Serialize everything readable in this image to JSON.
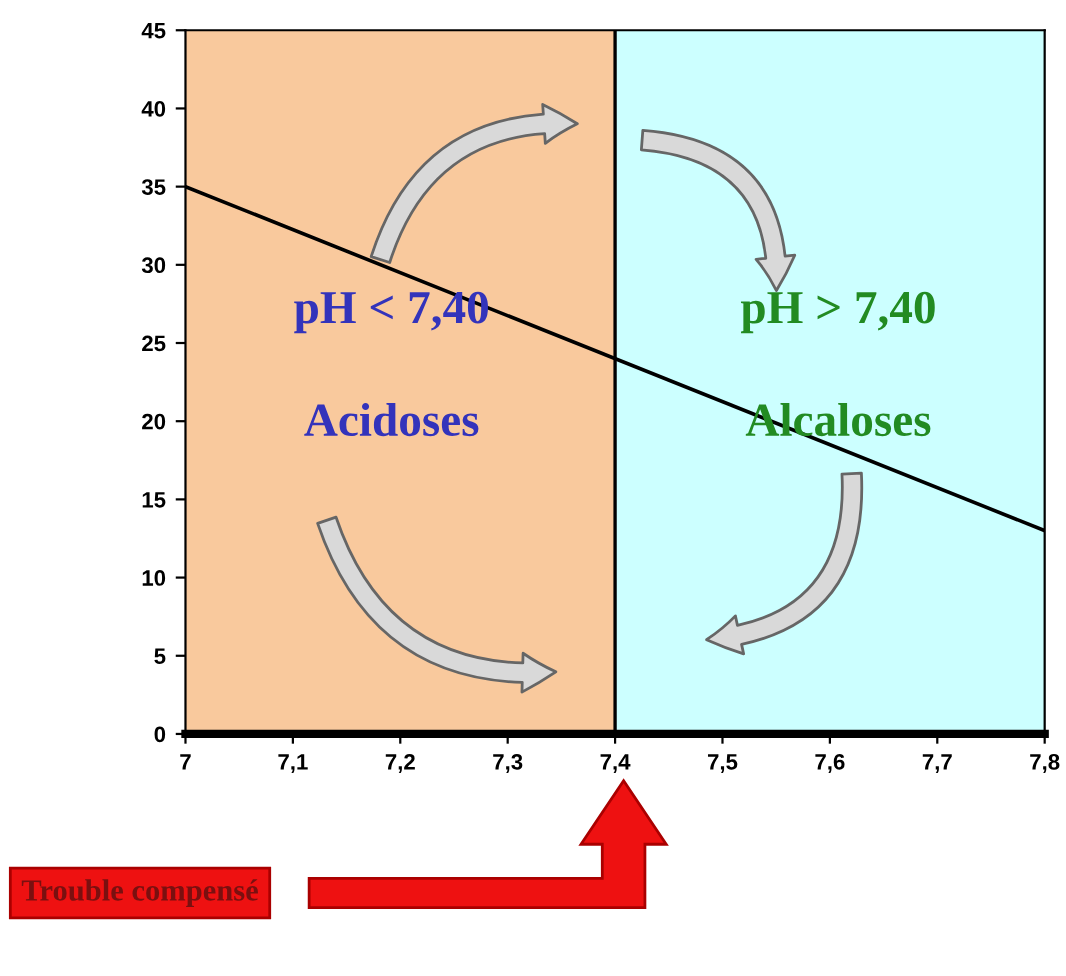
{
  "chart_data": {
    "type": "line",
    "x": [
      7,
      7.8
    ],
    "series": [
      {
        "color": "#000000",
        "values": [
          35,
          13
        ]
      }
    ],
    "xlim": [
      7,
      7.8
    ],
    "ylim": [
      0,
      45
    ],
    "xticks": [
      7,
      {
        "value": 7.1,
        "label": "7,1"
      },
      {
        "value": 7.2,
        "label": "7,2"
      },
      {
        "value": 7.3,
        "label": "7,3"
      },
      {
        "value": 7.4,
        "label": "7,4"
      },
      {
        "value": 7.5,
        "label": "7,5"
      },
      {
        "value": 7.6,
        "label": "7,6"
      },
      {
        "value": 7.7,
        "label": "7,7"
      },
      {
        "value": 7.8,
        "label": "7,8"
      }
    ],
    "yticks": [
      0,
      5,
      10,
      15,
      20,
      25,
      30,
      35,
      40,
      45
    ],
    "bands": [
      {
        "axis": "x",
        "from": 7,
        "to": 7.4,
        "color": "#f9c99d"
      },
      {
        "axis": "x",
        "from": 7.4,
        "to": 7.8,
        "color": "#ccffff"
      }
    ],
    "ref_lines": [
      {
        "axis": "x",
        "value": 7.4,
        "color": "#000000"
      }
    ],
    "annotations": [
      "pH < 7,40",
      "Acidoses",
      "pH > 7,40",
      "Alcaloses",
      "Trouble compensé"
    ],
    "grid": false,
    "legend": false,
    "marker": "none",
    "line_style": "solid"
  }
}
